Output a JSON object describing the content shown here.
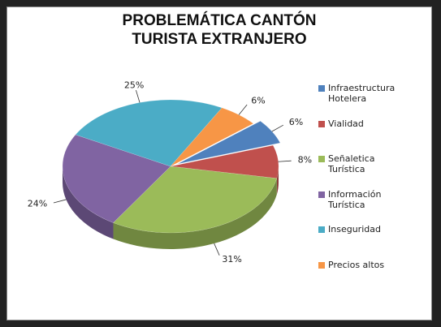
{
  "chart_data": {
    "type": "pie3d",
    "title": "PROBLEMÁTICA CANTÓN TURISTA EXTRANJERO",
    "categories": [
      "Infraestructura Hotelera",
      "Vialidad",
      "Señaletica Turística",
      "Información Turística",
      "Inseguridad",
      "Precios altos"
    ],
    "values": [
      6,
      8,
      31,
      24,
      25,
      6
    ],
    "value_labels": [
      "6%",
      "8%",
      "31%",
      "24%",
      "25%",
      "6%"
    ],
    "colors": [
      "#4f81bd",
      "#c0504d",
      "#9bbb59",
      "#8064a2",
      "#4bacc6",
      "#f79646"
    ],
    "legend": "right"
  }
}
